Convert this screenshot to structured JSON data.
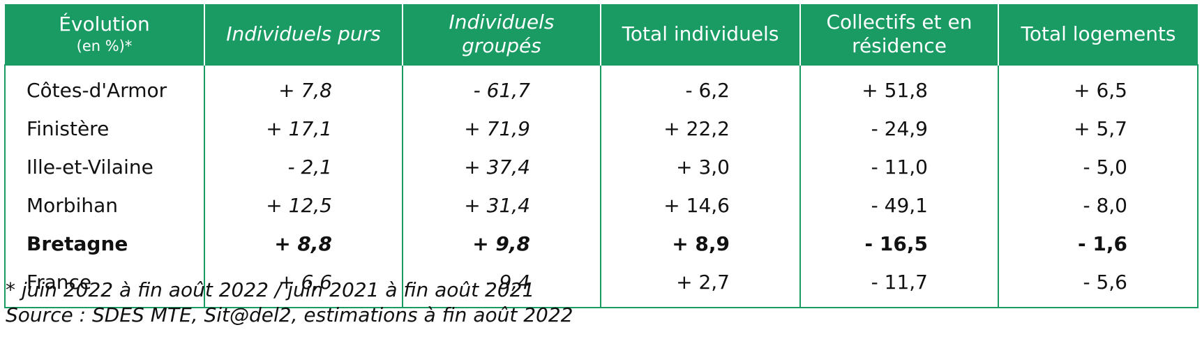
{
  "table": {
    "headers": [
      {
        "line1": "Évolution",
        "line2": "(en %)*"
      },
      {
        "line1": "Individuels purs"
      },
      {
        "line1": "Individuels",
        "line2": "groupés"
      },
      {
        "line1": "Total individuels"
      },
      {
        "line1": "Collectifs et en",
        "line2": "résidence"
      },
      {
        "line1": "Total logements"
      }
    ],
    "rows": [
      {
        "label": "Côtes-d'Armor",
        "values": [
          "+ 7,8",
          "- 61,7",
          "- 6,2",
          "+ 51,8",
          "+ 6,5"
        ]
      },
      {
        "label": "Finistère",
        "values": [
          "+ 17,1",
          "+ 71,9",
          "+ 22,2",
          "- 24,9",
          "+ 5,7"
        ]
      },
      {
        "label": "Ille-et-Vilaine",
        "values": [
          "- 2,1",
          "+ 37,4",
          "+ 3,0",
          "- 11,0",
          "- 5,0"
        ]
      },
      {
        "label": "Morbihan",
        "values": [
          "+ 12,5",
          "+ 31,4",
          "+ 14,6",
          "- 49,1",
          "- 8,0"
        ]
      },
      {
        "label": "Bretagne",
        "values": [
          "+ 8,8",
          "+ 9,8",
          "+ 8,9",
          "- 16,5",
          "- 1,6"
        ]
      },
      {
        "label": "France",
        "values": [
          "+ 6,6",
          "- 9,4",
          "+ 2,7",
          "- 11,7",
          "- 5,6"
        ]
      }
    ]
  },
  "notes": {
    "footnote": "* juin 2022 à fin août 2022 / juin 2021 à fin août 2021",
    "source": "Source : SDES MTE, Sit@del2, estimations à fin août 2022"
  },
  "colors": {
    "header_bg": "#1a9b63",
    "border": "#1a9b63"
  }
}
